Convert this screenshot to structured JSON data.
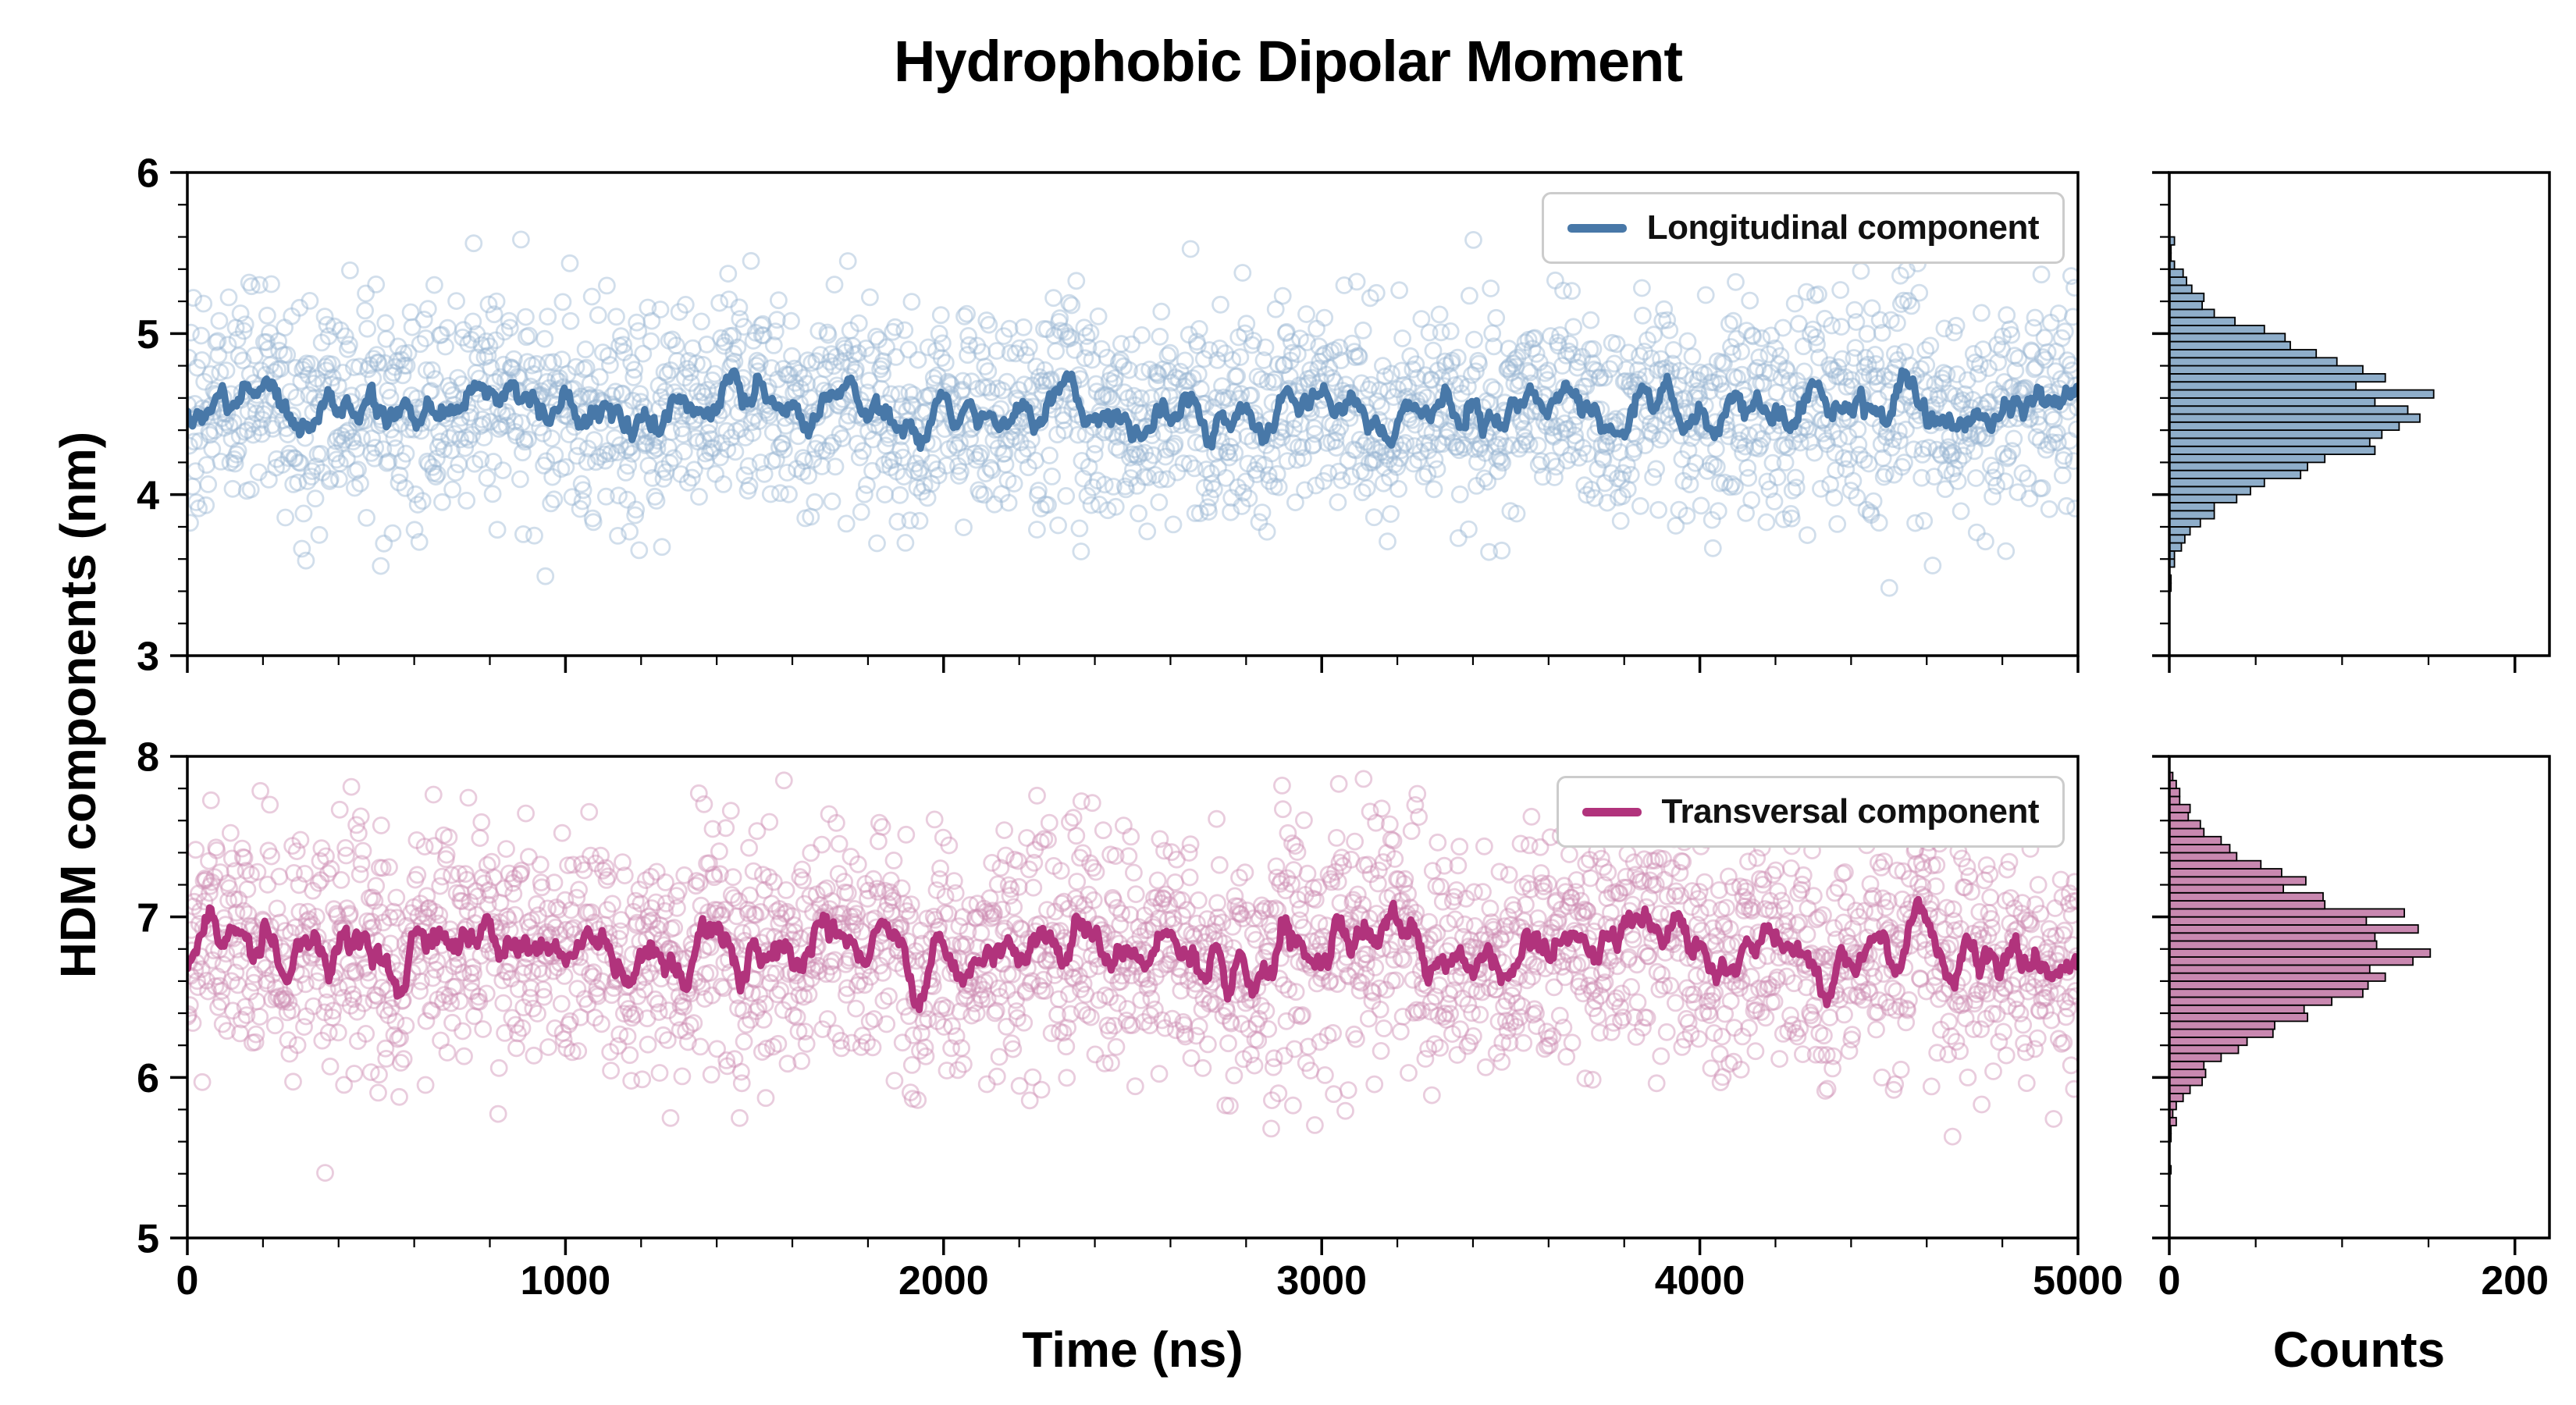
{
  "chart_data": {
    "type": "scatter",
    "title": "Hydrophobic Dipolar Moment",
    "xlabel": "Time (ns)",
    "ylabel": "HDM components (nm)",
    "counts_label": "Counts",
    "x_range": [
      0,
      5000
    ],
    "x_ticks": [
      0,
      1000,
      2000,
      3000,
      4000,
      5000
    ],
    "x_minor_step": 200,
    "counts_range": [
      0,
      220
    ],
    "counts_ticks": [
      0,
      200
    ],
    "counts_minor_step": 50,
    "hist_bin_width": 0.05,
    "line_window": 9,
    "legend_position": "upper right",
    "grid": false,
    "panels": [
      {
        "name": "longitudinal",
        "legend": "Longitudinal component",
        "line_color": "#4878a8",
        "scatter_color": "#9ab5d3",
        "hist_color": "#5f8cb4",
        "y_range": [
          3,
          6
        ],
        "y_ticks": [
          3,
          4,
          5,
          6
        ],
        "y_minor_step": 0.2,
        "distribution": {
          "mean": 4.52,
          "std": 0.34,
          "peak_counts": 160
        },
        "n_points": 2400,
        "seed": 1234
      },
      {
        "name": "transversal",
        "legend": "Transversal component",
        "line_color": "#b1337c",
        "scatter_color": "#cf8db4",
        "hist_color": "#b2568f",
        "y_range": [
          5,
          8
        ],
        "y_ticks": [
          5,
          6,
          7,
          8
        ],
        "y_minor_step": 0.2,
        "distribution": {
          "mean": 6.78,
          "std": 0.37,
          "peak_counts": 165
        },
        "n_points": 2600,
        "seed": 987
      }
    ]
  }
}
